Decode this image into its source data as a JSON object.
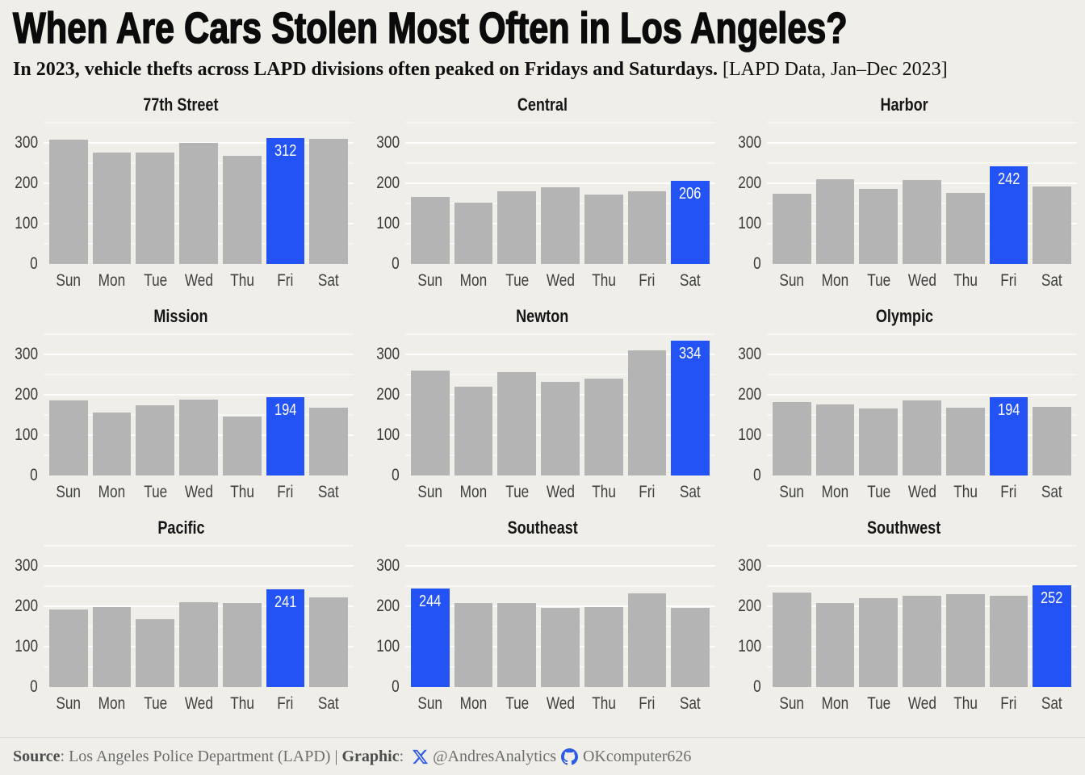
{
  "title": "When Are Cars Stolen Most Often in Los Angeles?",
  "subtitle_bold": "In 2023, vehicle thefts across LAPD divisions often peaked on Fridays and Saturdays.",
  "subtitle_note": " [LAPD Data, Jan–Dec 2023]",
  "footer": {
    "source_label": "Source",
    "source_rest": ": Los Angeles Police Department (LAPD) | ",
    "graphic_label": "Graphic",
    "graphic_sep": ": ",
    "x_icon": "x-twitter-logo-icon",
    "x_handle": "@AndresAnalytics",
    "github_icon": "github-octocat-icon",
    "github_handle": "OKcomputer626"
  },
  "colors": {
    "background": "#efeee9",
    "bar": "#b4b4b4",
    "highlight": "#2353f4",
    "icon": "#2b5be4",
    "title": "#0b0b0b"
  },
  "chart_data": {
    "type": "bar",
    "layout": "3x3 small multiples, one panel per LAPD division",
    "categories": [
      "Sun",
      "Mon",
      "Tue",
      "Wed",
      "Thu",
      "Fri",
      "Sat"
    ],
    "yticks": [
      0,
      100,
      200,
      300
    ],
    "ylim": [
      0,
      350
    ],
    "grid": "horizontal gridlines, major every 100, minor every 50",
    "ylabel": "",
    "xlabel": "",
    "panels": [
      {
        "title": "77th Street",
        "values": [
          307,
          275,
          276,
          299,
          268,
          312,
          310
        ],
        "highlight_day": "Fri",
        "highlight_index": 5,
        "highlight_value": 312
      },
      {
        "title": "Central",
        "values": [
          165,
          152,
          180,
          190,
          172,
          180,
          206
        ],
        "highlight_day": "Sat",
        "highlight_index": 6,
        "highlight_value": 206
      },
      {
        "title": "Harbor",
        "values": [
          174,
          210,
          185,
          208,
          176,
          242,
          192
        ],
        "highlight_day": "Fri",
        "highlight_index": 5,
        "highlight_value": 242
      },
      {
        "title": "Mission",
        "values": [
          186,
          156,
          174,
          188,
          145,
          194,
          168
        ],
        "highlight_day": "Fri",
        "highlight_index": 5,
        "highlight_value": 194
      },
      {
        "title": "Newton",
        "values": [
          259,
          220,
          256,
          231,
          240,
          309,
          334
        ],
        "highlight_day": "Sat",
        "highlight_index": 6,
        "highlight_value": 334
      },
      {
        "title": "Olympic",
        "values": [
          182,
          175,
          166,
          186,
          168,
          194,
          170
        ],
        "highlight_day": "Fri",
        "highlight_index": 5,
        "highlight_value": 194
      },
      {
        "title": "Pacific",
        "values": [
          191,
          198,
          167,
          209,
          207,
          241,
          222
        ],
        "highlight_day": "Fri",
        "highlight_index": 5,
        "highlight_value": 241
      },
      {
        "title": "Southeast",
        "values": [
          244,
          208,
          208,
          195,
          197,
          231,
          196
        ],
        "highlight_day": "Sun",
        "highlight_index": 0,
        "highlight_value": 244
      },
      {
        "title": "Southwest",
        "values": [
          233,
          208,
          220,
          226,
          230,
          226,
          252
        ],
        "highlight_day": "Sat",
        "highlight_index": 6,
        "highlight_value": 252
      }
    ]
  }
}
